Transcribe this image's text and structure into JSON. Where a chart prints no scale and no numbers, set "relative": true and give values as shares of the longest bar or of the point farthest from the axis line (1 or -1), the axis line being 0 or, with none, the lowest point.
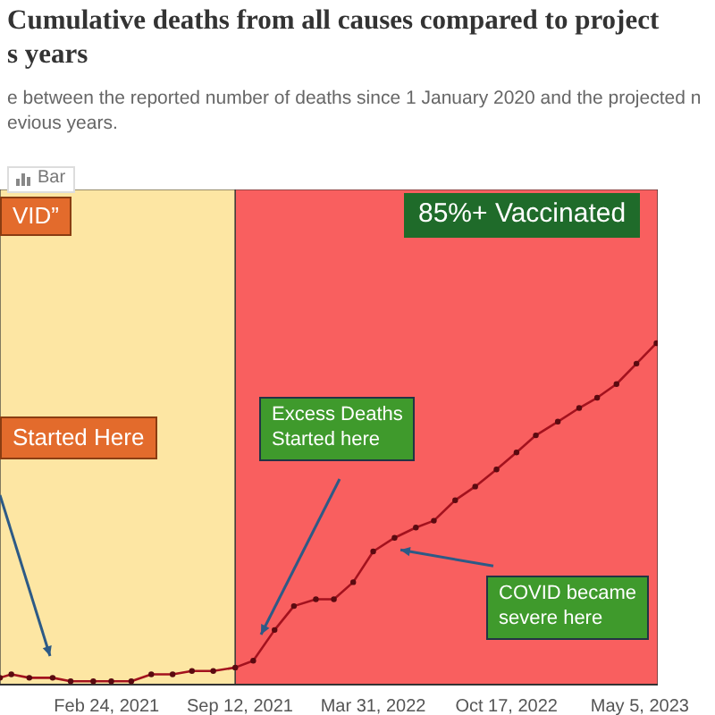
{
  "chart_data": {
    "type": "line",
    "title": "Cumulative deaths from all causes compared to project\ns years",
    "subtitle": "e between the reported number of deaths since 1 January 2020 and the projected n\nevious years.",
    "annotations": [
      "Bar",
      "VID”",
      "Started Here",
      "85%+ Vaccinated",
      "Excess Deaths\nStarted here",
      "COVID became\nsevere here"
    ],
    "relative": true,
    "marker": "circle",
    "x": [
      "2020-09-17",
      "2020-10-04",
      "2020-10-31",
      "2020-12-05",
      "2021-01-01",
      "2021-02-04",
      "2021-03-03",
      "2021-04-02",
      "2021-05-02",
      "2021-06-03",
      "2021-07-02",
      "2021-08-03",
      "2021-09-05",
      "2021-10-02",
      "2021-11-03",
      "2021-12-02",
      "2022-01-04",
      "2022-01-31",
      "2022-03-01",
      "2022-03-31",
      "2022-05-02",
      "2022-06-03",
      "2022-06-30",
      "2022-08-01",
      "2022-08-31",
      "2022-10-02",
      "2022-11-01",
      "2022-11-30",
      "2023-01-02",
      "2023-02-03",
      "2023-03-02",
      "2023-03-31",
      "2023-04-30",
      "2023-05-30"
    ],
    "series": [
      {
        "color": "#a3121e",
        "values": [
          0.02,
          0.03,
          0.02,
          0.02,
          0.01,
          0.01,
          0.01,
          0.01,
          0.03,
          0.03,
          0.04,
          0.04,
          0.05,
          0.07,
          0.16,
          0.23,
          0.25,
          0.25,
          0.3,
          0.39,
          0.43,
          0.46,
          0.48,
          0.54,
          0.58,
          0.63,
          0.68,
          0.73,
          0.77,
          0.81,
          0.84,
          0.88,
          0.94,
          1
        ]
      }
    ],
    "xlim": [
      "2020-09-17",
      "2023-06-01"
    ],
    "xticks": [
      {
        "value": "2021-02-24",
        "label": "Feb 24, 2021"
      },
      {
        "value": "2021-09-12",
        "label": "Sep 12, 2021"
      },
      {
        "value": "2022-03-31",
        "label": "Mar 31, 2022"
      },
      {
        "value": "2022-10-17",
        "label": "Oct 17, 2022"
      },
      {
        "value": "2023-05-05",
        "label": "May 5, 2023"
      }
    ],
    "bands": [
      {
        "axis": "x",
        "from": "2020-09-17",
        "to": "2021-09-05",
        "color": "#fde6a3"
      },
      {
        "axis": "x",
        "from": "2021-09-05",
        "to": "2023-06-01",
        "color": "#f95f5f"
      }
    ]
  }
}
